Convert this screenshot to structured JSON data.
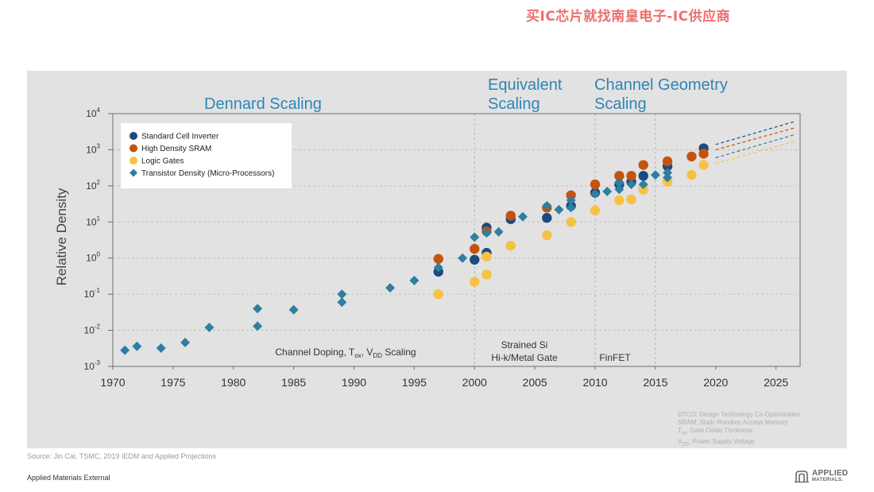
{
  "watermark": "买IC芯片就找南皇电子-IC供应商",
  "eras": {
    "dennard": "Dennard Scaling",
    "equivalent_1": "Equivalent",
    "equivalent_2": "Scaling",
    "channel_1": "Channel Geometry",
    "channel_2": "Scaling"
  },
  "source": "Source: Jin Cai, TSMC, 2019 IEDM and Applied Projections",
  "footer": "Applied Materials External",
  "logo": {
    "line1": "APPLIED",
    "line2": "MATERIALS."
  },
  "glossary": {
    "line1": "DTCO: Design Technology Co-Optimization",
    "line2": "SRAM: Static Random Access Memory",
    "line3_main": "T",
    "line3_sub": "ox",
    "line3_rest": ": Gate Oxide Thickness",
    "line4_main": "V",
    "line4_sub": "DD",
    "line4_rest": ": Power Supply Voltage"
  },
  "colors": {
    "inverter": "#1a4a80",
    "sram": "#c4530f",
    "logic": "#f7c143",
    "transistor": "#2e7fa0",
    "era_title": "#2e86b5"
  },
  "chart_data": {
    "type": "scatter",
    "ylabel": "Relative Density",
    "xlabel": "",
    "y_scale": "log",
    "xlim": [
      1970,
      2027
    ],
    "ylim": [
      0.001,
      10000
    ],
    "x_ticks": [
      "1970",
      "1975",
      "1980",
      "1985",
      "1990",
      "1995",
      "2000",
      "2005",
      "2010",
      "2015",
      "2020",
      "2025"
    ],
    "y_ticks": [
      {
        "base": "10",
        "exp": "4"
      },
      {
        "base": "10",
        "exp": "3"
      },
      {
        "base": "10",
        "exp": "2"
      },
      {
        "base": "10",
        "exp": "1"
      },
      {
        "base": "10",
        "exp": "0"
      },
      {
        "base": "10",
        "exp": "-1"
      },
      {
        "base": "10",
        "exp": "-2"
      },
      {
        "base": "10",
        "exp": "-3"
      }
    ],
    "grid": "horizontal dashed",
    "legend_position": "top-left",
    "era_dividers": [
      2000,
      2010,
      2015
    ],
    "annotations": {
      "channel_doping": {
        "pre": "Channel Doping, T",
        "sub1": "ox",
        "mid": ", V",
        "sub2": "DD",
        "post": " Scaling"
      },
      "strained_1": "Strained Si",
      "strained_2": "Hi-k/Metal Gate",
      "finfet": "FinFET"
    },
    "series": [
      {
        "name": "Standard Cell Inverter",
        "marker": "circle",
        "color_key": "inverter",
        "points": [
          [
            1997,
            0.42
          ],
          [
            2000,
            0.9
          ],
          [
            2001,
            1.4
          ],
          [
            2001,
            7.0
          ],
          [
            2003,
            12
          ],
          [
            2006,
            13
          ],
          [
            2008,
            28
          ],
          [
            2010,
            65
          ],
          [
            2012,
            110
          ],
          [
            2013,
            130
          ],
          [
            2014,
            190
          ],
          [
            2016,
            350
          ],
          [
            2019,
            1100
          ]
        ]
      },
      {
        "name": "High Density SRAM",
        "marker": "circle",
        "color_key": "sram",
        "points": [
          [
            1997,
            0.95
          ],
          [
            2000,
            1.8
          ],
          [
            2001,
            5.5
          ],
          [
            2003,
            15
          ],
          [
            2006,
            25
          ],
          [
            2008,
            55
          ],
          [
            2010,
            110
          ],
          [
            2012,
            190
          ],
          [
            2013,
            190
          ],
          [
            2014,
            380
          ],
          [
            2016,
            480
          ],
          [
            2018,
            650
          ],
          [
            2019,
            780
          ]
        ]
      },
      {
        "name": "Logic Gates",
        "marker": "circle",
        "color_key": "logic",
        "points": [
          [
            1997,
            0.1
          ],
          [
            2000,
            0.22
          ],
          [
            2001,
            0.35
          ],
          [
            2001,
            1.1
          ],
          [
            2003,
            2.2
          ],
          [
            2006,
            4.3
          ],
          [
            2008,
            10
          ],
          [
            2010,
            21
          ],
          [
            2012,
            40
          ],
          [
            2013,
            42
          ],
          [
            2014,
            78
          ],
          [
            2016,
            130
          ],
          [
            2018,
            200
          ],
          [
            2019,
            380
          ]
        ]
      },
      {
        "name": "Transistor Density (Micro-Processors)",
        "marker": "diamond",
        "color_key": "transistor",
        "points": [
          [
            1971,
            0.0028
          ],
          [
            1972,
            0.0036
          ],
          [
            1974,
            0.0032
          ],
          [
            1976,
            0.0046
          ],
          [
            1978,
            0.012
          ],
          [
            1982,
            0.013
          ],
          [
            1982,
            0.04
          ],
          [
            1985,
            0.037
          ],
          [
            1989,
            0.06
          ],
          [
            1989,
            0.1
          ],
          [
            1993,
            0.15
          ],
          [
            1995,
            0.24
          ],
          [
            1997,
            0.55
          ],
          [
            1999,
            1.0
          ],
          [
            2000,
            3.8
          ],
          [
            2001,
            5.0
          ],
          [
            2002,
            5.3
          ],
          [
            2004,
            14
          ],
          [
            2006,
            28
          ],
          [
            2007,
            22
          ],
          [
            2008,
            25
          ],
          [
            2008,
            40
          ],
          [
            2010,
            60
          ],
          [
            2011,
            70
          ],
          [
            2012,
            80
          ],
          [
            2012,
            120
          ],
          [
            2013,
            110
          ],
          [
            2014,
            110
          ],
          [
            2015,
            200
          ],
          [
            2016,
            170
          ],
          [
            2016,
            230
          ]
        ]
      }
    ],
    "projections": [
      {
        "color_key": "inverter",
        "from": [
          2020,
          1400
        ],
        "to": [
          2026.5,
          6000
        ]
      },
      {
        "color_key": "sram",
        "from": [
          2020,
          1000
        ],
        "to": [
          2026.5,
          4000
        ]
      },
      {
        "color_key": "transistor",
        "from": [
          2020,
          600
        ],
        "to": [
          2026.5,
          2600
        ]
      },
      {
        "color_key": "logic",
        "from": [
          2020,
          420
        ],
        "to": [
          2026.5,
          1700
        ]
      }
    ]
  }
}
